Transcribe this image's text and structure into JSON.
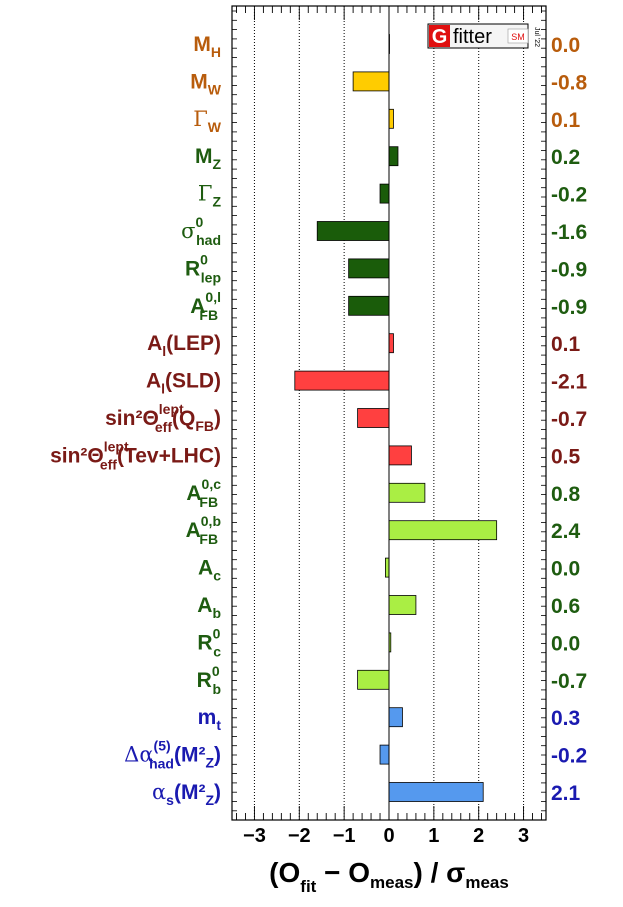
{
  "chart_data": {
    "type": "bar",
    "orientation": "horizontal",
    "xlabel": "(O_fit − O_meas) / σ_meas",
    "xlim": [
      -3.5,
      3.5
    ],
    "xticks": [
      -3,
      -2,
      -1,
      0,
      1,
      2,
      3
    ],
    "xtick_labels": [
      "−3",
      "−2",
      "−1",
      "0",
      "1",
      "2",
      "3"
    ],
    "grid": "vertical dotted lines at integer ticks",
    "logo": {
      "letter": "G",
      "word": "fitter",
      "tag": "SM",
      "date": "Jul '22"
    },
    "colors": {
      "group_higgs_w": "#ffcc00",
      "group_z": "#1a5c0a",
      "group_asym": "#ff4040",
      "group_hf": "#aaee44",
      "group_top": "#5599ee",
      "label_higgs_w": "#b85c0c",
      "label_z": "#1e5c10",
      "label_asym": "#7a1a16",
      "label_hf": "#1e5c10",
      "label_top": "#1a1ab0"
    },
    "categories": [
      {
        "name": "M_H",
        "base": "M",
        "sub": "H",
        "sup": "",
        "suffix": "",
        "value": 0.0,
        "display": "0.0",
        "group": "higgs_w"
      },
      {
        "name": "M_W",
        "base": "M",
        "sub": "W",
        "sup": "",
        "suffix": "",
        "value": -0.8,
        "display": "-0.8",
        "group": "higgs_w"
      },
      {
        "name": "Γ_W",
        "base": "Γ",
        "sub": "W",
        "sup": "",
        "suffix": "",
        "value": 0.1,
        "display": "0.1",
        "group": "higgs_w"
      },
      {
        "name": "M_Z",
        "base": "M",
        "sub": "Z",
        "sup": "",
        "suffix": "",
        "value": 0.2,
        "display": "0.2",
        "group": "z"
      },
      {
        "name": "Γ_Z",
        "base": "Γ",
        "sub": "Z",
        "sup": "",
        "suffix": "",
        "value": -0.2,
        "display": "-0.2",
        "group": "z"
      },
      {
        "name": "σ^0_had",
        "base": "σ",
        "sub": "had",
        "sup": "0",
        "suffix": "",
        "value": -1.6,
        "display": "-1.6",
        "group": "z"
      },
      {
        "name": "R^0_lep",
        "base": "R",
        "sub": "lep",
        "sup": "0",
        "suffix": "",
        "value": -0.9,
        "display": "-0.9",
        "group": "z"
      },
      {
        "name": "A^0,l_FB",
        "base": "A",
        "sub": "FB",
        "sup": "0,l",
        "suffix": "",
        "value": -0.9,
        "display": "-0.9",
        "group": "z"
      },
      {
        "name": "A_l(LEP)",
        "base": "A",
        "sub": "l",
        "sup": "",
        "suffix": "(LEP)",
        "value": 0.1,
        "display": "0.1",
        "group": "asym"
      },
      {
        "name": "A_l(SLD)",
        "base": "A",
        "sub": "l",
        "sup": "",
        "suffix": "(SLD)",
        "value": -2.1,
        "display": "-2.1",
        "group": "asym"
      },
      {
        "name": "sin²Θ^lept_eff(Q_FB)",
        "base": "sin²Θ",
        "sub": "eff",
        "sup": "lept",
        "suffix": "(Q",
        "suffix_sub": "FB",
        "suffix_end": ")",
        "value": -0.7,
        "display": "-0.7",
        "group": "asym"
      },
      {
        "name": "sin²Θ^lept_eff(Tev+LHC)",
        "base": "sin²Θ",
        "sub": "eff",
        "sup": "lept",
        "suffix": "(Tev+LHC)",
        "value": 0.5,
        "display": "0.5",
        "group": "asym"
      },
      {
        "name": "A^0,c_FB",
        "base": "A",
        "sub": "FB",
        "sup": "0,c",
        "suffix": "",
        "value": 0.8,
        "display": "0.8",
        "group": "hf"
      },
      {
        "name": "A^0,b_FB",
        "base": "A",
        "sub": "FB",
        "sup": "0,b",
        "suffix": "",
        "value": 2.4,
        "display": "2.4",
        "group": "hf"
      },
      {
        "name": "A_c",
        "base": "A",
        "sub": "c",
        "sup": "",
        "suffix": "",
        "value": -0.08,
        "display": "0.0",
        "group": "hf"
      },
      {
        "name": "A_b",
        "base": "A",
        "sub": "b",
        "sup": "",
        "suffix": "",
        "value": 0.6,
        "display": "0.6",
        "group": "hf"
      },
      {
        "name": "R^0_c",
        "base": "R",
        "sub": "c",
        "sup": "0",
        "suffix": "",
        "value": 0.04,
        "display": "0.0",
        "group": "hf"
      },
      {
        "name": "R^0_b",
        "base": "R",
        "sub": "b",
        "sup": "0",
        "suffix": "",
        "value": -0.7,
        "display": "-0.7",
        "group": "hf"
      },
      {
        "name": "m_t",
        "base": "m",
        "sub": "t",
        "sup": "",
        "suffix": "",
        "value": 0.3,
        "display": "0.3",
        "group": "top"
      },
      {
        "name": "Δα^(5)_had(M²_Z)",
        "base": "Δα",
        "sub": "had",
        "sup": "(5)",
        "suffix": "(M²",
        "suffix_sub": "Z",
        "suffix_end": ")",
        "value": -0.2,
        "display": "-0.2",
        "group": "top"
      },
      {
        "name": "α_s(M²_Z)",
        "base": "α",
        "sub": "s",
        "sup": "",
        "suffix": "(M²",
        "suffix_sub": "Z",
        "suffix_end": ")",
        "value": 2.1,
        "display": "2.1",
        "group": "top"
      }
    ]
  }
}
